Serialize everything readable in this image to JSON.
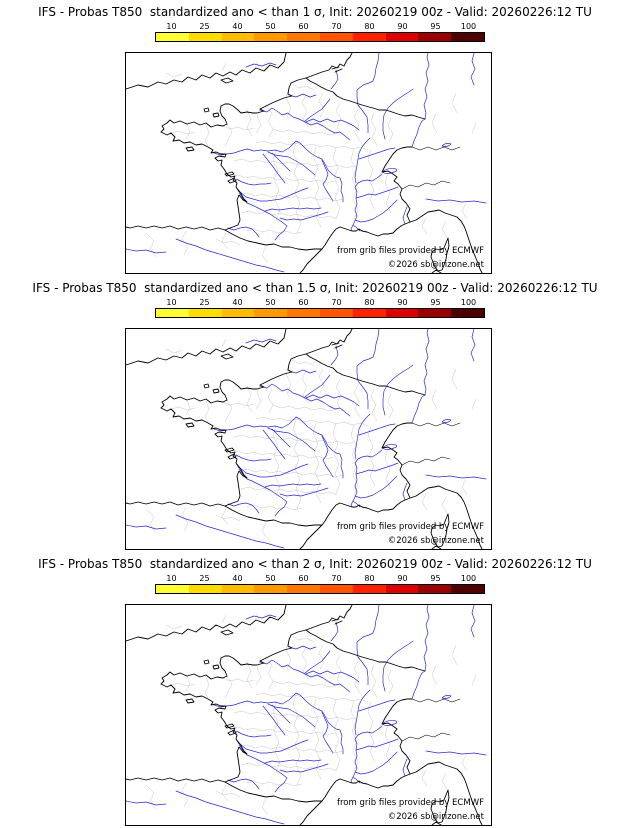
{
  "page": {
    "background": "#ffffff"
  },
  "colorbar": {
    "ticks": [
      "10",
      "25",
      "40",
      "50",
      "60",
      "70",
      "80",
      "90",
      "95",
      "100"
    ],
    "colors": [
      "#ffff33",
      "#ffdd00",
      "#ffbb00",
      "#ff9900",
      "#ff7700",
      "#ff5500",
      "#ff2200",
      "#dd0000",
      "#990000",
      "#4c0000"
    ]
  },
  "panels": [
    {
      "id": "sigma-1",
      "title": "IFS - Probas T850  standardized ano < than 1 σ, Init: 20260219 00z - Valid: 20260226:12 TU"
    },
    {
      "id": "sigma-1-5",
      "title": "IFS - Probas T850  standardized ano < than 1.5 σ, Init: 20260219 00z - Valid: 20260226:12 TU"
    },
    {
      "id": "sigma-2",
      "title": "IFS - Probas T850  standardized ano < than 2 σ, Init: 20260219 00z - Valid: 20260226:12 TU"
    }
  ],
  "map": {
    "attribution_line1": "from grib files provided by ECMWF",
    "attribution_line2": "©2026 sb@irizone.net",
    "coast_color": "#000000",
    "river_color": "#2a2ad4",
    "admin_color": "#c4c4c4"
  }
}
